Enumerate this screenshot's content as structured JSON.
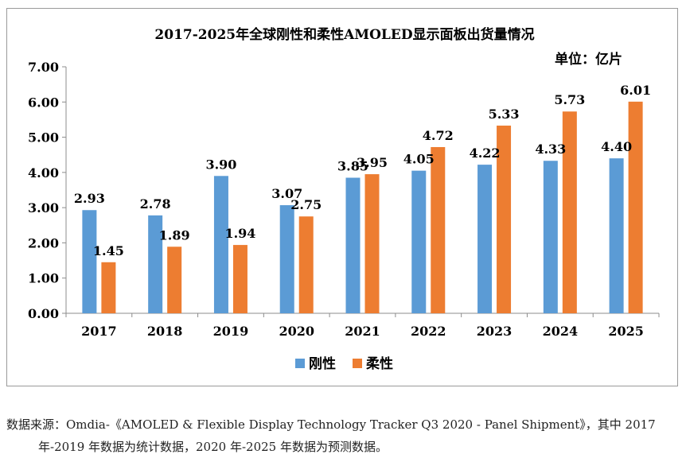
{
  "chart_data": {
    "type": "bar",
    "title": "2017-2025年全球刚性和柔性AMOLED显示面板出货量情况",
    "unit_label": "单位：亿片",
    "categories": [
      "2017",
      "2018",
      "2019",
      "2020",
      "2021",
      "2022",
      "2023",
      "2024",
      "2025"
    ],
    "series": [
      {
        "name": "刚性",
        "values": [
          2.93,
          2.78,
          3.9,
          3.07,
          3.85,
          4.05,
          4.22,
          4.33,
          4.4
        ],
        "labels": [
          "2.93",
          "2.78",
          "3.90",
          "3.07",
          "3.85",
          "4.05",
          "4.22",
          "4.33",
          "4.40"
        ],
        "color": "#5b9bd5"
      },
      {
        "name": "柔性",
        "values": [
          1.45,
          1.89,
          1.94,
          2.75,
          3.95,
          4.72,
          5.33,
          5.73,
          6.01
        ],
        "labels": [
          "1.45",
          "1.89",
          "1.94",
          "2.75",
          "3.95",
          "4.72",
          "5.33",
          "5.73",
          "6.01"
        ],
        "color": "#ed7d31"
      }
    ],
    "ylim": [
      0,
      7
    ],
    "yticks": [
      "0.00",
      "1.00",
      "2.00",
      "3.00",
      "4.00",
      "5.00",
      "6.00",
      "7.00"
    ],
    "grid": false,
    "legend_position": "bottom"
  },
  "footnote": {
    "line1": "数据来源：Omdia-《AMOLED & Flexible Display Technology Tracker Q3 2020 - Panel Shipment》，其中 2017",
    "line2": "年-2019 年数据为统计数据，2020 年-2025 年数据为预测数据。"
  }
}
